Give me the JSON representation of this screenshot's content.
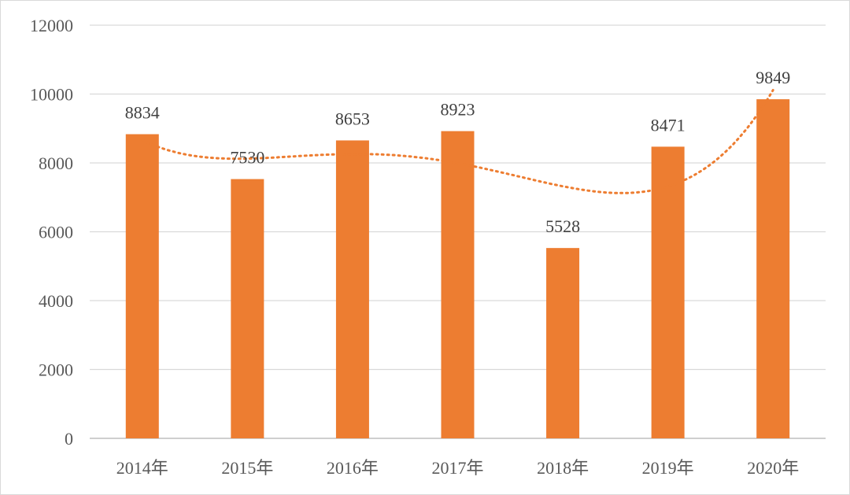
{
  "chart_data": {
    "type": "bar",
    "title": "",
    "xlabel": "",
    "ylabel": "",
    "categories": [
      "2014年",
      "2015年",
      "2016年",
      "2017年",
      "2018年",
      "2019年",
      "2020年"
    ],
    "values": [
      8834,
      7530,
      8653,
      8923,
      5528,
      8471,
      9849
    ],
    "ylim": [
      0,
      12000
    ],
    "yticks": [
      0,
      2000,
      4000,
      6000,
      8000,
      10000,
      12000
    ],
    "grid": true,
    "legend": "none",
    "bar_color": "#ED7D31",
    "trendline": {
      "type": "polynomial",
      "style": "dotted",
      "color": "#ED7D31"
    }
  }
}
